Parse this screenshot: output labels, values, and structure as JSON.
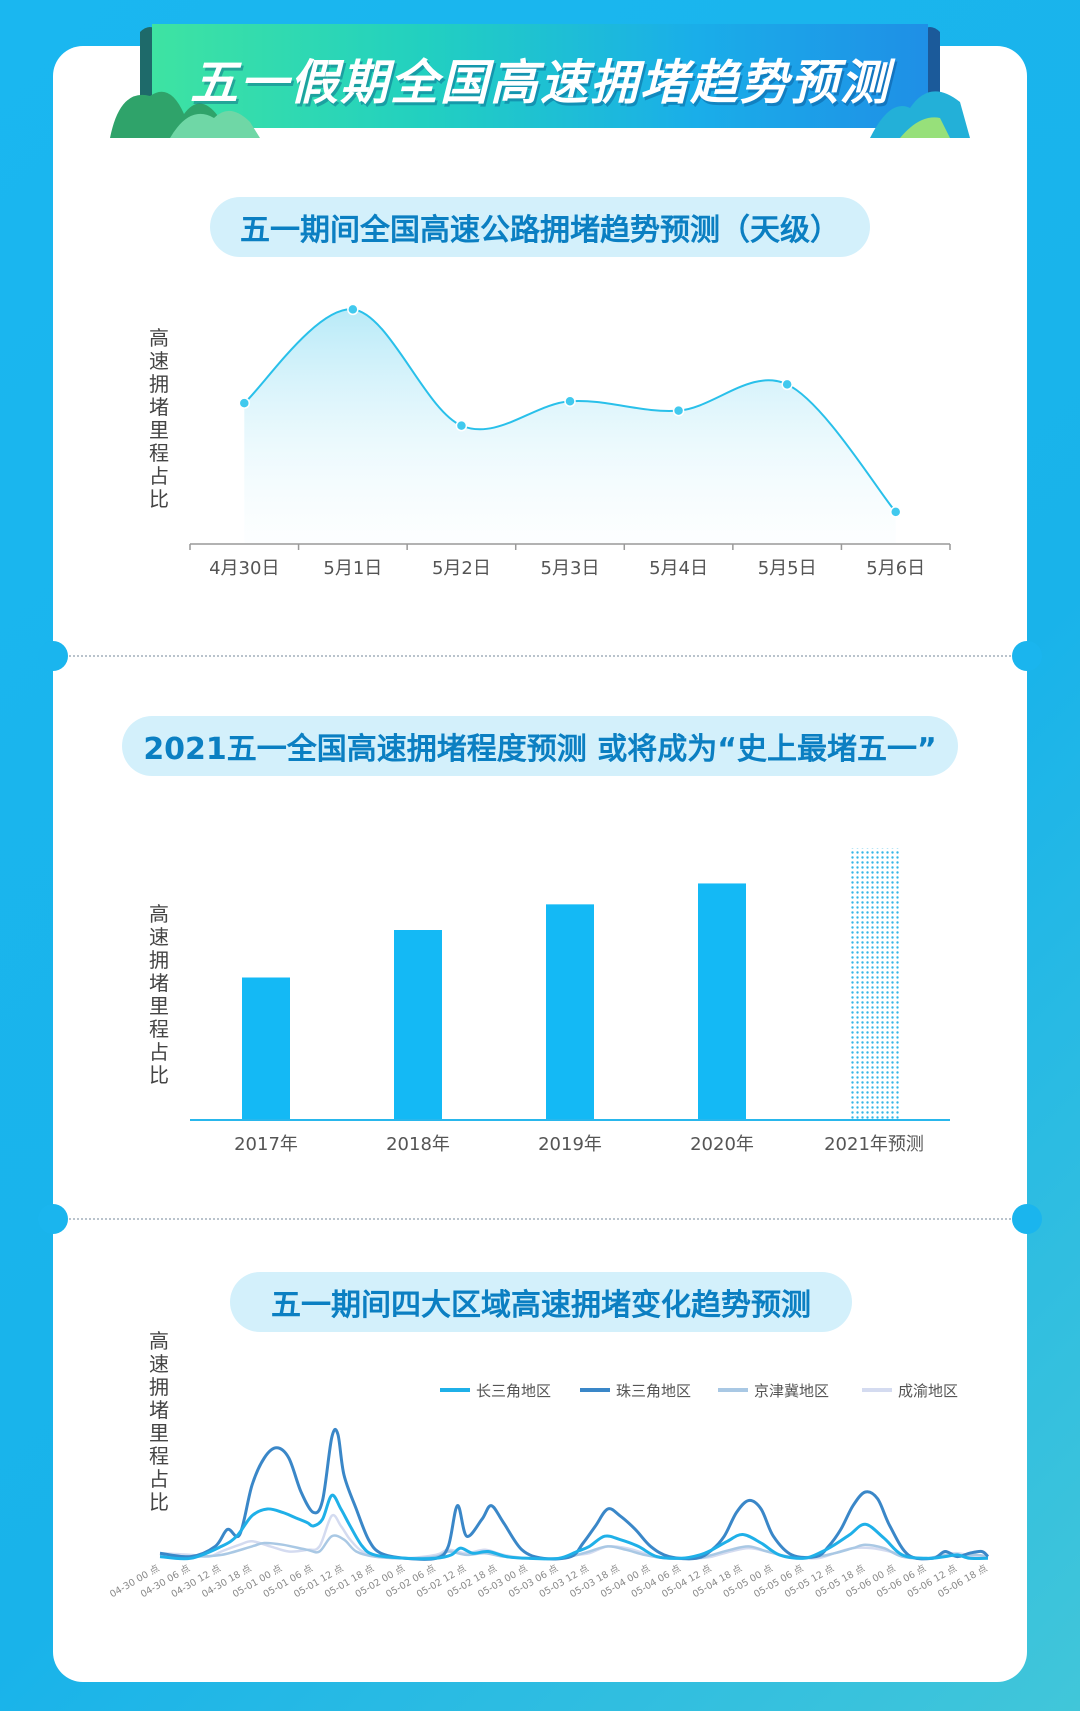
{
  "header": {
    "title": "五一假期全国高速拥堵趋势预测"
  },
  "section1": {
    "title": "五一期间全国高速公路拥堵趋势预测（天级）",
    "ylabel": "高速拥堵里程占比"
  },
  "section2": {
    "title": "2021五一全国高速拥堵程度预测 或将成为“史上最堵五一”",
    "ylabel": "高速拥堵里程占比"
  },
  "section3": {
    "title": "五一期间四大区域高速拥堵变化趋势预测",
    "ylabel": "高速拥堵里程占比"
  },
  "chart_data": [
    {
      "type": "line",
      "title": "五一期间全国高速公路拥堵趋势预测（天级）",
      "ylabel": "高速拥堵里程占比",
      "categories": [
        "4月30日",
        "5月1日",
        "5月2日",
        "5月3日",
        "5月4日",
        "5月5日",
        "5月6日"
      ],
      "values": [
        0.45,
        0.95,
        0.33,
        0.46,
        0.41,
        0.55,
        -0.13
      ],
      "ylim": [
        -0.2,
        1.0
      ],
      "color": "#29c0ea",
      "grid": false
    },
    {
      "type": "bar",
      "title": "2021五一全国高速拥堵程度预测 或将成为“史上最堵五一”",
      "ylabel": "高速拥堵里程占比",
      "categories": [
        "2017年",
        "2018年",
        "2019年",
        "2020年",
        "2021年预测"
      ],
      "values": [
        150,
        200,
        227,
        249,
        286
      ],
      "ylim": [
        0,
        300
      ],
      "color": "#14b9f5",
      "forecast_index": 4,
      "grid": false
    },
    {
      "type": "line",
      "title": "五一期间四大区域高速拥堵变化趋势预测",
      "ylabel": "高速拥堵里程占比",
      "legend_position": "top-right",
      "x": [
        "04-30 00 点",
        "04-30 06 点",
        "04-30 12 点",
        "04-30 18 点",
        "05-01 00 点",
        "05-01 06 点",
        "05-01 12 点",
        "05-01 18 点",
        "05-02 00 点",
        "05-02 06 点",
        "05-02 12 点",
        "05-02 18 点",
        "05-03 00 点",
        "05-03 06 点",
        "05-03 12 点",
        "05-03 18 点",
        "05-04 00 点",
        "05-04 06 点",
        "05-04 12 点",
        "05-04 18 点",
        "05-05 00 点",
        "05-05 06 点",
        "05-05 12 点",
        "05-05 18 点",
        "05-06 00 点",
        "05-06 06 点",
        "05-06 12 点",
        "05-06 18 点"
      ],
      "ylim": [
        0,
        100
      ],
      "series": [
        {
          "name": "长三角地区",
          "color": "#1fb0e8",
          "width": 3,
          "points": [
            [
              0,
              2
            ],
            [
              1,
              1
            ],
            [
              2,
              8
            ],
            [
              2.5,
              14
            ],
            [
              3,
              26
            ],
            [
              3.5,
              30
            ],
            [
              4,
              28
            ],
            [
              4.4,
              25
            ],
            [
              4.8,
              22
            ],
            [
              5,
              20
            ],
            [
              5.3,
              24
            ],
            [
              5.6,
              38
            ],
            [
              5.9,
              30
            ],
            [
              6.2,
              20
            ],
            [
              6.6,
              8
            ],
            [
              7,
              3
            ],
            [
              8,
              1
            ],
            [
              9,
              1
            ],
            [
              9.5,
              3
            ],
            [
              9.8,
              7
            ],
            [
              10.2,
              4
            ],
            [
              10.7,
              5
            ],
            [
              11.3,
              2
            ],
            [
              12,
              1
            ],
            [
              13,
              1
            ],
            [
              13.6,
              5
            ],
            [
              14,
              8
            ],
            [
              14.5,
              14
            ],
            [
              15,
              12
            ],
            [
              15.6,
              8
            ],
            [
              16.2,
              2
            ],
            [
              17,
              1
            ],
            [
              17.6,
              3
            ],
            [
              18,
              6
            ],
            [
              18.5,
              11
            ],
            [
              19,
              15
            ],
            [
              19.6,
              10
            ],
            [
              20.2,
              3
            ],
            [
              21,
              1
            ],
            [
              21.6,
              5
            ],
            [
              22,
              9
            ],
            [
              22.5,
              15
            ],
            [
              23,
              21
            ],
            [
              23.6,
              13
            ],
            [
              24.2,
              3
            ],
            [
              25,
              1
            ],
            [
              25.6,
              2
            ],
            [
              26,
              3
            ],
            [
              26.4,
              1
            ],
            [
              27,
              1
            ]
          ]
        },
        {
          "name": "珠三角地区",
          "color": "#3a87c8",
          "width": 3,
          "points": [
            [
              0,
              4
            ],
            [
              1,
              2
            ],
            [
              1.8,
              8
            ],
            [
              2.2,
              18
            ],
            [
              2.6,
              15
            ],
            [
              3,
              44
            ],
            [
              3.4,
              60
            ],
            [
              3.8,
              66
            ],
            [
              4.2,
              60
            ],
            [
              4.6,
              40
            ],
            [
              5,
              28
            ],
            [
              5.3,
              35
            ],
            [
              5.6,
              72
            ],
            [
              5.8,
              74
            ],
            [
              6,
              50
            ],
            [
              6.4,
              30
            ],
            [
              6.8,
              12
            ],
            [
              7.2,
              4
            ],
            [
              8,
              1
            ],
            [
              9,
              1
            ],
            [
              9.4,
              8
            ],
            [
              9.7,
              32
            ],
            [
              10,
              14
            ],
            [
              10.5,
              24
            ],
            [
              10.8,
              32
            ],
            [
              11.2,
              22
            ],
            [
              11.8,
              6
            ],
            [
              12.5,
              1
            ],
            [
              13.4,
              2
            ],
            [
              13.8,
              10
            ],
            [
              14.2,
              20
            ],
            [
              14.6,
              30
            ],
            [
              15,
              26
            ],
            [
              15.5,
              18
            ],
            [
              16,
              8
            ],
            [
              16.6,
              2
            ],
            [
              17.5,
              1
            ],
            [
              18,
              6
            ],
            [
              18.4,
              14
            ],
            [
              18.8,
              28
            ],
            [
              19.2,
              35
            ],
            [
              19.6,
              30
            ],
            [
              20,
              14
            ],
            [
              20.6,
              3
            ],
            [
              21.4,
              2
            ],
            [
              21.8,
              8
            ],
            [
              22.2,
              18
            ],
            [
              22.6,
              32
            ],
            [
              23,
              40
            ],
            [
              23.4,
              36
            ],
            [
              23.8,
              20
            ],
            [
              24.4,
              3
            ],
            [
              25.2,
              1
            ],
            [
              25.6,
              5
            ],
            [
              26,
              2
            ],
            [
              26.4,
              4
            ],
            [
              26.8,
              5
            ],
            [
              27,
              2
            ]
          ]
        },
        {
          "name": "京津冀地区",
          "color": "#a9c8e4",
          "width": 2.5,
          "points": [
            [
              0,
              3
            ],
            [
              1,
              2
            ],
            [
              2,
              3
            ],
            [
              3,
              8
            ],
            [
              3.4,
              10
            ],
            [
              4,
              9
            ],
            [
              4.8,
              6
            ],
            [
              5.2,
              5
            ],
            [
              5.6,
              14
            ],
            [
              6,
              12
            ],
            [
              6.4,
              5
            ],
            [
              7,
              2
            ],
            [
              8,
              1
            ],
            [
              9,
              2
            ],
            [
              9.4,
              5
            ],
            [
              10,
              3
            ],
            [
              10.6,
              4
            ],
            [
              11.2,
              2
            ],
            [
              12,
              1
            ],
            [
              13,
              1
            ],
            [
              13.6,
              3
            ],
            [
              14,
              5
            ],
            [
              14.6,
              8
            ],
            [
              15.2,
              6
            ],
            [
              15.8,
              3
            ],
            [
              16.5,
              1
            ],
            [
              17.5,
              1
            ],
            [
              18,
              3
            ],
            [
              18.6,
              6
            ],
            [
              19.2,
              8
            ],
            [
              19.8,
              5
            ],
            [
              20.5,
              2
            ],
            [
              21.4,
              2
            ],
            [
              22,
              4
            ],
            [
              22.6,
              7
            ],
            [
              23,
              9
            ],
            [
              23.6,
              7
            ],
            [
              24.2,
              2
            ],
            [
              25,
              1
            ],
            [
              25.6,
              3
            ],
            [
              26,
              2
            ],
            [
              26.6,
              3
            ],
            [
              27,
              2
            ]
          ]
        },
        {
          "name": "成渝地区",
          "color": "#d4dbf0",
          "width": 2.5,
          "points": [
            [
              0,
              4
            ],
            [
              1,
              3
            ],
            [
              1.6,
              2
            ],
            [
              2,
              5
            ],
            [
              2.6,
              9
            ],
            [
              3,
              11
            ],
            [
              3.6,
              8
            ],
            [
              4.2,
              5
            ],
            [
              4.8,
              6
            ],
            [
              5.2,
              8
            ],
            [
              5.6,
              26
            ],
            [
              5.9,
              20
            ],
            [
              6.2,
              12
            ],
            [
              6.6,
              5
            ],
            [
              7.2,
              2
            ],
            [
              8,
              1
            ],
            [
              9,
              3
            ],
            [
              9.4,
              6
            ],
            [
              10,
              4
            ],
            [
              10.6,
              6
            ],
            [
              11.2,
              3
            ],
            [
              12,
              1
            ],
            [
              13,
              1
            ],
            [
              13.6,
              3
            ],
            [
              14,
              4
            ],
            [
              14.6,
              8
            ],
            [
              15.2,
              7
            ],
            [
              15.8,
              4
            ],
            [
              16.5,
              1
            ],
            [
              17.5,
              1
            ],
            [
              18,
              2
            ],
            [
              18.6,
              5
            ],
            [
              19.2,
              7
            ],
            [
              19.8,
              5
            ],
            [
              20.5,
              2
            ],
            [
              21.4,
              1
            ],
            [
              22,
              4
            ],
            [
              22.6,
              7
            ],
            [
              23.2,
              7
            ],
            [
              23.8,
              5
            ],
            [
              24.4,
              2
            ],
            [
              25.2,
              1
            ],
            [
              25.6,
              3
            ],
            [
              26,
              4
            ],
            [
              26.6,
              2
            ],
            [
              27,
              1
            ]
          ]
        }
      ],
      "grid": false
    }
  ]
}
